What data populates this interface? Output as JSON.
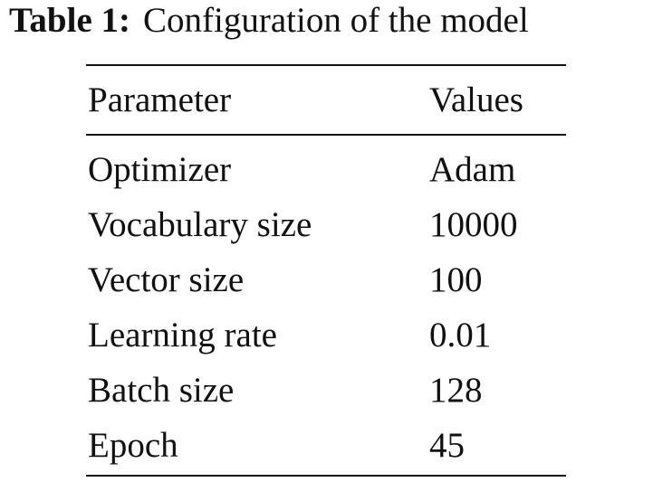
{
  "caption": {
    "label": "Table 1:",
    "title": "Configuration of the model"
  },
  "table": {
    "header": [
      "Parameter",
      "Values"
    ],
    "rows": [
      [
        "Optimizer",
        "Adam"
      ],
      [
        "Vocabulary size",
        "10000"
      ],
      [
        "Vector size",
        "100"
      ],
      [
        "Learning rate",
        "0.01"
      ],
      [
        "Batch size",
        "128"
      ],
      [
        "Epoch",
        "45"
      ]
    ]
  }
}
